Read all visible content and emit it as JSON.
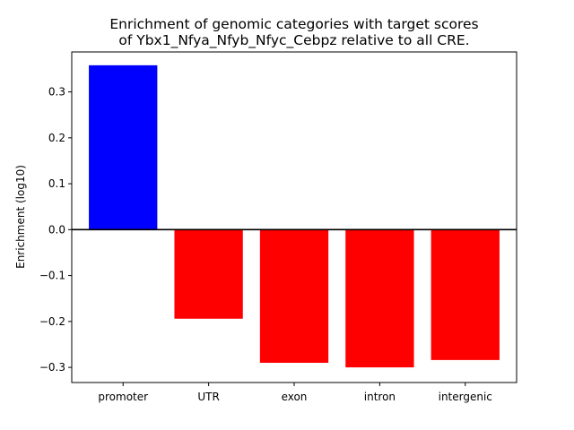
{
  "chart_data": {
    "type": "bar",
    "title_lines": [
      "Enrichment of genomic categories with target scores",
      "of Ybx1_Nfya_Nfyb_Nfyc_Cebpz relative to all CRE."
    ],
    "xlabel": "",
    "ylabel": "Enrichment (log10)",
    "categories": [
      "promoter",
      "UTR",
      "exon",
      "intron",
      "intergenic"
    ],
    "values": [
      0.358,
      -0.194,
      -0.29,
      -0.3,
      -0.284
    ],
    "positive_color": "#0000ff",
    "negative_color": "#ff0000",
    "ylim": [
      -0.333,
      0.387
    ],
    "yticks": [
      -0.3,
      -0.2,
      -0.1,
      0.0,
      0.1,
      0.2,
      0.3
    ],
    "ytick_labels": [
      "−0.3",
      "−0.2",
      "−0.1",
      "0.0",
      "0.1",
      "0.2",
      "0.3"
    ],
    "grid": false,
    "baseline": 0
  }
}
